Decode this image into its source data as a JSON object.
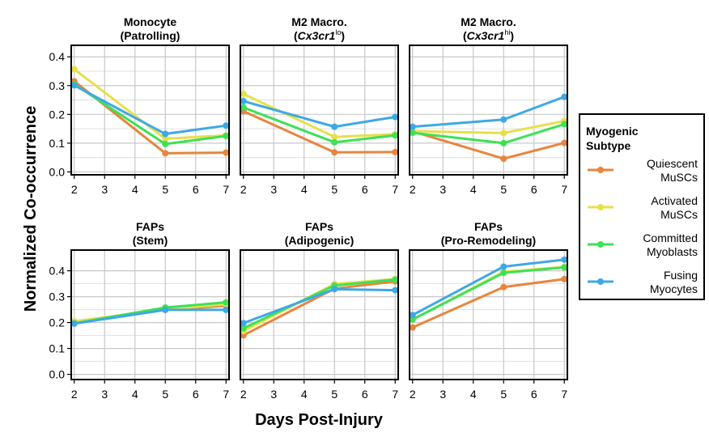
{
  "figure": {
    "ylabel": "Normalized Co-occurrence",
    "xlabel": "Days Post-Injury"
  },
  "legend": {
    "title_line1": "Myogenic",
    "title_line2": "Subtype",
    "entries": [
      {
        "line1": "Quiescent",
        "line2": "MuSCs",
        "color": "#e8853d"
      },
      {
        "line1": "Activated",
        "line2": "MuSCs",
        "color": "#e6e04a"
      },
      {
        "line1": "Committed",
        "line2": "Myoblasts",
        "color": "#3fe056"
      },
      {
        "line1": "Fusing",
        "line2": "Myocytes",
        "color": "#3ea8e6"
      }
    ]
  },
  "chart_data": [
    {
      "type": "line",
      "title_line1": "Monocyte",
      "title_line2": "(Patrolling)",
      "title_sup": "",
      "x": [
        2,
        5,
        7
      ],
      "xticks": [
        "2",
        "3",
        "4",
        "5",
        "6",
        "7"
      ],
      "yticks": [
        "0.0",
        "0.1",
        "0.2",
        "0.3",
        "0.4"
      ],
      "xlim": [
        1.9,
        7.1
      ],
      "ylim": [
        -0.01,
        0.44
      ],
      "grid": true,
      "series": [
        {
          "name": "Quiescent MuSCs",
          "values": [
            0.315,
            0.065,
            0.067
          ]
        },
        {
          "name": "Activated MuSCs",
          "values": [
            0.357,
            0.115,
            0.127
          ]
        },
        {
          "name": "Committed Myoblasts",
          "values": [
            0.305,
            0.097,
            0.125
          ]
        },
        {
          "name": "Fusing Myocytes",
          "values": [
            0.301,
            0.132,
            0.161
          ]
        }
      ]
    },
    {
      "type": "line",
      "title_line1": "M2 Macro.",
      "title_line2": "(Cx3cr1",
      "title_sup": "lo",
      "x": [
        2,
        5,
        7
      ],
      "xticks": [
        "2",
        "3",
        "4",
        "5",
        "6",
        "7"
      ],
      "yticks": [
        "0.0",
        "0.1",
        "0.2",
        "0.3",
        "0.4"
      ],
      "xlim": [
        1.9,
        7.1
      ],
      "ylim": [
        -0.01,
        0.44
      ],
      "grid": true,
      "series": [
        {
          "name": "Quiescent MuSCs",
          "values": [
            0.211,
            0.068,
            0.069
          ]
        },
        {
          "name": "Activated MuSCs",
          "values": [
            0.271,
            0.122,
            0.131
          ]
        },
        {
          "name": "Committed Myoblasts",
          "values": [
            0.224,
            0.103,
            0.127
          ]
        },
        {
          "name": "Fusing Myocytes",
          "values": [
            0.246,
            0.157,
            0.191
          ]
        }
      ]
    },
    {
      "type": "line",
      "title_line1": "M2 Macro.",
      "title_line2": "(Cx3cr1",
      "title_sup": "hi",
      "x": [
        2,
        5,
        7
      ],
      "xticks": [
        "2",
        "3",
        "4",
        "5",
        "6",
        "7"
      ],
      "yticks": [
        "0.0",
        "0.1",
        "0.2",
        "0.3",
        "0.4"
      ],
      "xlim": [
        1.9,
        7.1
      ],
      "ylim": [
        -0.01,
        0.44
      ],
      "grid": true,
      "series": [
        {
          "name": "Quiescent MuSCs",
          "values": [
            0.141,
            0.046,
            0.101
          ]
        },
        {
          "name": "Activated MuSCs",
          "values": [
            0.142,
            0.135,
            0.177
          ]
        },
        {
          "name": "Committed Myoblasts",
          "values": [
            0.136,
            0.1,
            0.166
          ]
        },
        {
          "name": "Fusing Myocytes",
          "values": [
            0.157,
            0.182,
            0.261
          ]
        }
      ]
    },
    {
      "type": "line",
      "title_line1": "FAPs",
      "title_line2": "(Stem)",
      "title_sup": "",
      "x": [
        2,
        5,
        7
      ],
      "xticks": [
        "2",
        "3",
        "4",
        "5",
        "6",
        "7"
      ],
      "yticks": [
        "0.0",
        "0.1",
        "0.2",
        "0.3",
        "0.4"
      ],
      "xlim": [
        1.9,
        7.1
      ],
      "ylim": [
        -0.02,
        0.48
      ],
      "grid": true,
      "series": [
        {
          "name": "Quiescent MuSCs",
          "values": [
            0.198,
            0.249,
            0.265
          ]
        },
        {
          "name": "Activated MuSCs",
          "values": [
            0.205,
            0.251,
            0.271
          ]
        },
        {
          "name": "Committed Myoblasts",
          "values": [
            0.197,
            0.258,
            0.278
          ]
        },
        {
          "name": "Fusing Myocytes",
          "values": [
            0.196,
            0.249,
            0.249
          ]
        }
      ]
    },
    {
      "type": "line",
      "title_line1": "FAPs",
      "title_line2": "(Adipogenic)",
      "title_sup": "",
      "x": [
        2,
        5,
        7
      ],
      "xticks": [
        "2",
        "3",
        "4",
        "5",
        "6",
        "7"
      ],
      "yticks": [
        "0.0",
        "0.1",
        "0.2",
        "0.3",
        "0.4"
      ],
      "xlim": [
        1.9,
        7.1
      ],
      "ylim": [
        -0.02,
        0.48
      ],
      "grid": true,
      "series": [
        {
          "name": "Quiescent MuSCs",
          "values": [
            0.151,
            0.331,
            0.359
          ]
        },
        {
          "name": "Activated MuSCs",
          "values": [
            0.167,
            0.349,
            0.368
          ]
        },
        {
          "name": "Committed Myoblasts",
          "values": [
            0.178,
            0.343,
            0.366
          ]
        },
        {
          "name": "Fusing Myocytes",
          "values": [
            0.198,
            0.329,
            0.325
          ]
        }
      ]
    },
    {
      "type": "line",
      "title_line1": "FAPs",
      "title_line2": "(Pro-Remodeling)",
      "title_sup": "",
      "x": [
        2,
        5,
        7
      ],
      "xticks": [
        "2",
        "3",
        "4",
        "5",
        "6",
        "7"
      ],
      "yticks": [
        "0.0",
        "0.1",
        "0.2",
        "0.3",
        "0.4"
      ],
      "xlim": [
        1.9,
        7.1
      ],
      "ylim": [
        -0.02,
        0.48
      ],
      "grid": true,
      "series": [
        {
          "name": "Quiescent MuSCs",
          "values": [
            0.181,
            0.337,
            0.368
          ]
        },
        {
          "name": "Activated MuSCs",
          "values": [
            0.211,
            0.396,
            0.415
          ]
        },
        {
          "name": "Committed Myoblasts",
          "values": [
            0.212,
            0.392,
            0.413
          ]
        },
        {
          "name": "Fusing Myocytes",
          "values": [
            0.229,
            0.416,
            0.443
          ]
        }
      ]
    }
  ]
}
